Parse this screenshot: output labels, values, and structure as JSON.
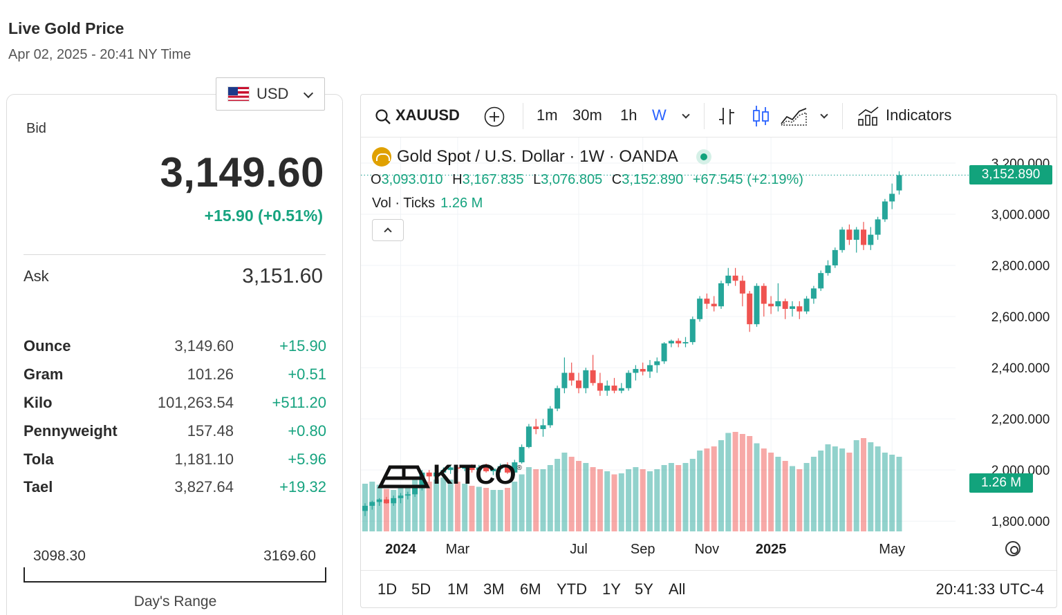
{
  "page": {
    "title": "Live Gold Price",
    "subtitle": "Apr 02, 2025 - 20:41 NY Time"
  },
  "currency": {
    "label": "USD",
    "flag_icon": "us-flag-icon"
  },
  "quote": {
    "bid_label": "Bid",
    "bid": "3,149.60",
    "change": "+15.90 (+0.51%)",
    "ask_label": "Ask",
    "ask": "3,151.60"
  },
  "units": [
    {
      "name": "Ounce",
      "price": "3,149.60",
      "change": "+15.90"
    },
    {
      "name": "Gram",
      "price": "101.26",
      "change": "+0.51"
    },
    {
      "name": "Kilo",
      "price": "101,263.54",
      "change": "+511.20"
    },
    {
      "name": "Pennyweight",
      "price": "157.48",
      "change": "+0.80"
    },
    {
      "name": "Tola",
      "price": "1,181.10",
      "change": "+5.96"
    },
    {
      "name": "Tael",
      "price": "3,827.64",
      "change": "+19.32"
    }
  ],
  "day_range": {
    "low": "3098.30",
    "high": "3169.60",
    "label": "Day's Range"
  },
  "toolbar": {
    "symbol": "XAUUSD",
    "timeframes": [
      "1m",
      "30m",
      "1h",
      "W"
    ],
    "active_timeframe": "W",
    "indicators_label": "Indicators"
  },
  "legend": {
    "title": "Gold Spot / U.S. Dollar · 1W · OANDA",
    "o_key": "O",
    "o": "3,093.010",
    "h_key": "H",
    "h": "3,167.835",
    "l_key": "L",
    "l": "3,076.805",
    "c_key": "C",
    "c": "3,152.890",
    "chg": "+67.545 (+2.19%)",
    "vol_label": "Vol · Ticks",
    "vol": "1.26 M"
  },
  "price_tag": "3,152.890",
  "vol_tag": "1.26 M",
  "watermark": "KITCO",
  "ranges": [
    "1D",
    "5D",
    "1M",
    "3M",
    "6M",
    "YTD",
    "1Y",
    "5Y",
    "All"
  ],
  "clock": "20:41:33 UTC-4",
  "colors": {
    "up": "#26a69a",
    "down": "#ef5350",
    "accent": "#12a37c",
    "active": "#2962ff"
  },
  "chart_data": {
    "type": "candlestick",
    "title": "",
    "y_ticks": [
      "1,800.000",
      "2,000.000",
      "2,200.000",
      "2,400.000",
      "2,600.000",
      "2,800.000",
      "3,000.000",
      "3,200.000"
    ],
    "ylim": [
      1760,
      3300
    ],
    "x_ticks": [
      {
        "label": "2024",
        "index": 5,
        "bold": true
      },
      {
        "label": "Mar",
        "index": 13,
        "bold": false
      },
      {
        "label": "Jul",
        "index": 30,
        "bold": false
      },
      {
        "label": "Sep",
        "index": 39,
        "bold": false
      },
      {
        "label": "Nov",
        "index": 48,
        "bold": false
      },
      {
        "label": "2025",
        "index": 57,
        "bold": true
      },
      {
        "label": "May",
        "index": 74,
        "bold": false
      }
    ],
    "last_close": 3152.89,
    "candles": [
      [
        1840,
        1870,
        1820,
        1860,
        0.46
      ],
      [
        1860,
        1880,
        1845,
        1875,
        0.48
      ],
      [
        1875,
        1890,
        1860,
        1885,
        0.45
      ],
      [
        1885,
        1895,
        1868,
        1870,
        0.41
      ],
      [
        1870,
        1900,
        1860,
        1890,
        0.4
      ],
      [
        1890,
        1910,
        1870,
        1900,
        0.42
      ],
      [
        1900,
        1915,
        1885,
        1905,
        0.44
      ],
      [
        1905,
        1940,
        1895,
        1930,
        0.5
      ],
      [
        1930,
        2000,
        1920,
        1990,
        0.52
      ],
      [
        1990,
        2000,
        1955,
        1975,
        0.48
      ],
      [
        1975,
        2000,
        1960,
        1990,
        0.5
      ],
      [
        1990,
        2010,
        1975,
        2000,
        0.52
      ],
      [
        2000,
        2020,
        1985,
        2010,
        0.5
      ],
      [
        2010,
        2020,
        1990,
        2005,
        0.48
      ],
      [
        2005,
        2020,
        1995,
        2015,
        0.46
      ],
      [
        2015,
        2022,
        1990,
        2000,
        0.44
      ],
      [
        2000,
        2020,
        1985,
        2010,
        0.43
      ],
      [
        2010,
        2025,
        1990,
        1995,
        0.42
      ],
      [
        1995,
        2010,
        1980,
        2005,
        0.4
      ],
      [
        2005,
        2025,
        1990,
        2015,
        0.4
      ],
      [
        2015,
        2030,
        1985,
        1990,
        0.42
      ],
      [
        1990,
        2040,
        1980,
        2030,
        0.48
      ],
      [
        2030,
        2100,
        2025,
        2090,
        0.55
      ],
      [
        2090,
        2180,
        2085,
        2170,
        0.62
      ],
      [
        2170,
        2200,
        2140,
        2160,
        0.6
      ],
      [
        2160,
        2200,
        2130,
        2175,
        0.6
      ],
      [
        2175,
        2250,
        2165,
        2240,
        0.64
      ],
      [
        2240,
        2330,
        2230,
        2320,
        0.7
      ],
      [
        2320,
        2440,
        2300,
        2380,
        0.76
      ],
      [
        2380,
        2420,
        2330,
        2350,
        0.72
      ],
      [
        2350,
        2380,
        2300,
        2320,
        0.68
      ],
      [
        2320,
        2400,
        2300,
        2390,
        0.66
      ],
      [
        2390,
        2450,
        2330,
        2340,
        0.62
      ],
      [
        2340,
        2380,
        2290,
        2310,
        0.6
      ],
      [
        2310,
        2350,
        2290,
        2330,
        0.58
      ],
      [
        2330,
        2360,
        2300,
        2310,
        0.55
      ],
      [
        2310,
        2340,
        2300,
        2320,
        0.56
      ],
      [
        2320,
        2390,
        2310,
        2380,
        0.6
      ],
      [
        2380,
        2410,
        2350,
        2395,
        0.62
      ],
      [
        2395,
        2420,
        2370,
        2385,
        0.6
      ],
      [
        2385,
        2430,
        2360,
        2410,
        0.58
      ],
      [
        2410,
        2440,
        2380,
        2425,
        0.6
      ],
      [
        2425,
        2500,
        2415,
        2495,
        0.64
      ],
      [
        2495,
        2510,
        2480,
        2505,
        0.66
      ],
      [
        2505,
        2515,
        2480,
        2495,
        0.64
      ],
      [
        2495,
        2520,
        2480,
        2500,
        0.66
      ],
      [
        2500,
        2600,
        2490,
        2590,
        0.7
      ],
      [
        2590,
        2680,
        2580,
        2670,
        0.78
      ],
      [
        2670,
        2690,
        2630,
        2650,
        0.8
      ],
      [
        2650,
        2680,
        2620,
        2640,
        0.82
      ],
      [
        2640,
        2740,
        2630,
        2730,
        0.88
      ],
      [
        2730,
        2790,
        2720,
        2760,
        0.95
      ],
      [
        2760,
        2790,
        2720,
        2740,
        0.96
      ],
      [
        2740,
        2760,
        2640,
        2690,
        0.94
      ],
      [
        2690,
        2700,
        2540,
        2570,
        0.92
      ],
      [
        2570,
        2730,
        2560,
        2720,
        0.85
      ],
      [
        2720,
        2730,
        2600,
        2650,
        0.8
      ],
      [
        2650,
        2680,
        2610,
        2640,
        0.76
      ],
      [
        2640,
        2730,
        2620,
        2660,
        0.72
      ],
      [
        2660,
        2670,
        2590,
        2630,
        0.68
      ],
      [
        2630,
        2660,
        2600,
        2640,
        0.63
      ],
      [
        2640,
        2660,
        2590,
        2620,
        0.6
      ],
      [
        2620,
        2680,
        2610,
        2670,
        0.66
      ],
      [
        2670,
        2720,
        2650,
        2710,
        0.72
      ],
      [
        2710,
        2780,
        2700,
        2770,
        0.78
      ],
      [
        2770,
        2820,
        2760,
        2800,
        0.84
      ],
      [
        2800,
        2870,
        2790,
        2860,
        0.82
      ],
      [
        2860,
        2950,
        2850,
        2940,
        0.8
      ],
      [
        2940,
        2960,
        2880,
        2900,
        0.76
      ],
      [
        2900,
        2950,
        2850,
        2940,
        0.88
      ],
      [
        2940,
        2970,
        2860,
        2880,
        0.9
      ],
      [
        2880,
        2950,
        2860,
        2920,
        0.86
      ],
      [
        2920,
        2990,
        2900,
        2980,
        0.82
      ],
      [
        2980,
        3060,
        2970,
        3050,
        0.76
      ],
      [
        3050,
        3120,
        3020,
        3080,
        0.74
      ],
      [
        3093,
        3168,
        3077,
        3153,
        0.72
      ]
    ]
  }
}
